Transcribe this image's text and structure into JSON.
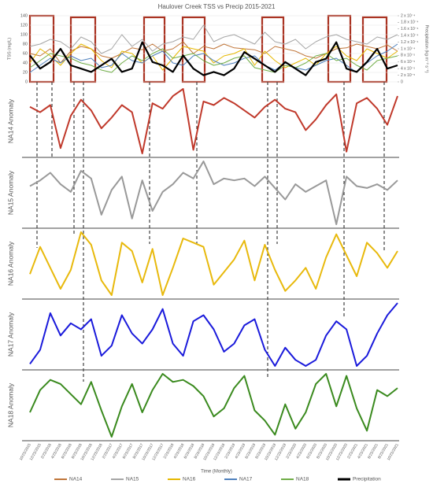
{
  "chart_data": [
    {
      "type": "line",
      "title": "Haulover Creek TSS vs Precip 2015-2021",
      "ylabel": "TSS (mg/L)",
      "y2label": "Precipitation (kg m⁻² s⁻¹)",
      "xlabel": "Time (Monthly)",
      "categories": [
        "10/23/2015",
        "12/23/2015",
        "2/23/2016",
        "4/23/2016",
        "6/23/2016",
        "8/23/2016",
        "10/23/2016",
        "12/23/2016",
        "2/23/2017",
        "4/23/2017",
        "6/23/2017",
        "8/23/2017",
        "10/23/2017",
        "12/23/2017",
        "2/23/2018",
        "4/23/2018",
        "6/23/2018",
        "8/23/2018",
        "10/23/2018",
        "12/23/2018",
        "2/23/2019",
        "4/23/2019",
        "6/23/2019",
        "8/23/2019",
        "10/23/2019",
        "12/23/2019",
        "2/23/2020",
        "4/23/2020",
        "6/23/2020",
        "8/23/2020",
        "10/23/2020",
        "12/23/2020",
        "2/23/2021",
        "4/23/2021",
        "6/23/2021",
        "8/23/2021",
        "10/23/2021"
      ],
      "ylim": [
        0,
        140
      ],
      "yticks": [
        0,
        20,
        40,
        60,
        80,
        100,
        120,
        140
      ],
      "y2lim": [
        0,
        0.0002
      ],
      "y2ticks": [
        0,
        {
          "value": 2e-05,
          "label": "2 x 10⁻⁵"
        },
        {
          "value": 4e-05,
          "label": "4 x 10⁻⁵"
        },
        {
          "value": 6e-05,
          "label": "6 x 10⁻⁵"
        },
        {
          "value": 8e-05,
          "label": "8 x 10⁻⁵"
        },
        {
          "value": 0.0001,
          "label": "1 x 10⁻⁴"
        },
        {
          "value": 0.00012,
          "label": "1.2 x 10⁻⁴"
        },
        {
          "value": 0.00014,
          "label": "1.4 x 10⁻⁴"
        },
        {
          "value": 0.00016,
          "label": "1.6 x 10⁻⁴"
        },
        {
          "value": 0.00018,
          "label": "1.8 x 10⁻⁴"
        },
        {
          "value": 0.0002,
          "label": "2 x 10⁻⁴"
        }
      ],
      "series": [
        {
          "name": "NA14",
          "color": "#c0763a",
          "values": [
            60,
            55,
            70,
            40,
            65,
            75,
            70,
            55,
            50,
            60,
            72,
            68,
            80,
            65,
            70,
            85,
            60,
            75,
            70,
            80,
            72,
            70,
            68,
            60,
            75,
            70,
            65,
            55,
            50,
            60,
            70,
            72,
            80,
            75,
            70,
            78,
            65
          ]
        },
        {
          "name": "NA15",
          "color": "#a6a6a6",
          "values": [
            75,
            80,
            90,
            85,
            70,
            95,
            85,
            60,
            70,
            100,
            75,
            90,
            65,
            80,
            85,
            95,
            90,
            120,
            85,
            95,
            100,
            90,
            80,
            105,
            85,
            80,
            90,
            70,
            85,
            95,
            100,
            90,
            85,
            80,
            95,
            90,
            100
          ]
        },
        {
          "name": "NA16",
          "color": "#e6b800",
          "values": [
            40,
            70,
            55,
            35,
            60,
            80,
            70,
            45,
            30,
            65,
            60,
            40,
            55,
            25,
            50,
            75,
            70,
            65,
            40,
            55,
            60,
            70,
            35,
            65,
            45,
            30,
            40,
            50,
            35,
            60,
            75,
            55,
            45,
            70,
            60,
            50,
            65
          ]
        },
        {
          "name": "NA17",
          "color": "#4f81bd",
          "values": [
            20,
            35,
            50,
            40,
            55,
            45,
            50,
            30,
            35,
            60,
            45,
            40,
            55,
            65,
            40,
            35,
            55,
            60,
            45,
            35,
            40,
            50,
            55,
            35,
            25,
            40,
            30,
            25,
            35,
            45,
            50,
            35,
            20,
            40,
            55,
            65,
            80
          ]
        },
        {
          "name": "NA18",
          "color": "#70ad47",
          "values": [
            30,
            45,
            60,
            55,
            50,
            40,
            35,
            25,
            20,
            40,
            55,
            45,
            60,
            70,
            50,
            55,
            60,
            45,
            35,
            40,
            50,
            55,
            30,
            25,
            20,
            35,
            30,
            40,
            55,
            60,
            45,
            50,
            35,
            25,
            45,
            50,
            55
          ]
        },
        {
          "name": "Precipitation",
          "color": "#000000",
          "axis": "y2",
          "values": [
            8e-05,
            4e-05,
            6e-05,
            0.0001,
            5e-05,
            4e-05,
            3e-05,
            5e-05,
            7e-05,
            3e-05,
            4e-05,
            0.00012,
            6e-05,
            5e-05,
            3e-05,
            8e-05,
            4e-05,
            2e-05,
            3e-05,
            2e-05,
            4e-05,
            9e-05,
            7e-05,
            5e-05,
            3e-05,
            6e-05,
            4e-05,
            2e-05,
            6e-05,
            7e-05,
            0.00012,
            4e-05,
            3e-05,
            6e-05,
            0.0001,
            4e-05,
            5e-05
          ]
        }
      ]
    },
    {
      "type": "line",
      "ylabel": "NA14 Anomaly",
      "color": "#c0392b",
      "values": [
        0.8,
        0.5,
        0.9,
        -1.5,
        0.3,
        1.2,
        0.6,
        -0.4,
        0.2,
        0.9,
        0.5,
        -1.8,
        1.0,
        0.7,
        1.4,
        1.8,
        -1.6,
        1.1,
        0.9,
        1.3,
        1.0,
        0.6,
        0.2,
        0.8,
        1.2,
        0.7,
        0.5,
        -0.5,
        0.1,
        0.9,
        1.5,
        -1.7,
        1.0,
        1.3,
        0.7,
        -0.2,
        1.4
      ]
    },
    {
      "type": "line",
      "ylabel": "NA15 Anomaly",
      "color": "#999999",
      "values": [
        0.5,
        0.8,
        1.2,
        0.6,
        0.2,
        1.3,
        0.9,
        -1.0,
        0.3,
        1.0,
        -1.2,
        0.8,
        -0.8,
        0.2,
        0.6,
        1.2,
        0.9,
        1.8,
        0.6,
        0.9,
        0.8,
        0.9,
        0.5,
        1.0,
        0.4,
        -0.2,
        0.6,
        0.2,
        0.5,
        0.8,
        -1.5,
        1.0,
        0.5,
        0.4,
        0.6,
        0.3,
        0.8
      ]
    },
    {
      "type": "line",
      "ylabel": "NA16 Anomaly",
      "color": "#e8b90c",
      "values": [
        -0.5,
        0.8,
        -0.2,
        -1.2,
        -0.3,
        1.5,
        0.9,
        -0.8,
        -1.5,
        1.0,
        0.6,
        -0.9,
        0.7,
        -1.5,
        -0.2,
        1.2,
        1.0,
        0.8,
        -1.0,
        -0.4,
        0.2,
        1.1,
        -0.8,
        0.9,
        -0.3,
        -1.3,
        -0.8,
        -0.2,
        -1.2,
        0.3,
        1.4,
        0.4,
        -0.6,
        1.0,
        0.5,
        -0.2,
        0.6
      ]
    },
    {
      "type": "line",
      "ylabel": "NA17 Anomaly",
      "color": "#1a1adb",
      "values": [
        -1.2,
        -0.5,
        1.3,
        0.2,
        0.8,
        0.5,
        1.0,
        -0.8,
        -0.3,
        1.2,
        0.3,
        -0.2,
        0.5,
        1.5,
        -0.2,
        -0.8,
        0.9,
        1.2,
        0.5,
        -0.6,
        -0.2,
        0.7,
        1.0,
        -0.5,
        -1.3,
        -0.4,
        -1.0,
        -1.3,
        -1.0,
        0.2,
        0.9,
        0.5,
        -1.3,
        -0.8,
        0.3,
        1.2,
        1.8
      ]
    },
    {
      "type": "line",
      "ylabel": "NA18 Anomaly",
      "color": "#3a8a1e",
      "values": [
        -0.6,
        0.5,
        1.0,
        0.8,
        0.3,
        -0.2,
        0.9,
        -0.5,
        -1.8,
        -0.3,
        0.8,
        -0.6,
        0.5,
        1.3,
        0.9,
        1.0,
        0.7,
        0.2,
        -0.8,
        -0.4,
        0.6,
        1.2,
        -0.5,
        -1.0,
        -1.7,
        -0.2,
        -1.4,
        -0.6,
        0.8,
        1.3,
        -0.3,
        1.2,
        -0.4,
        -1.5,
        0.5,
        0.2,
        0.6
      ]
    }
  ]
}
